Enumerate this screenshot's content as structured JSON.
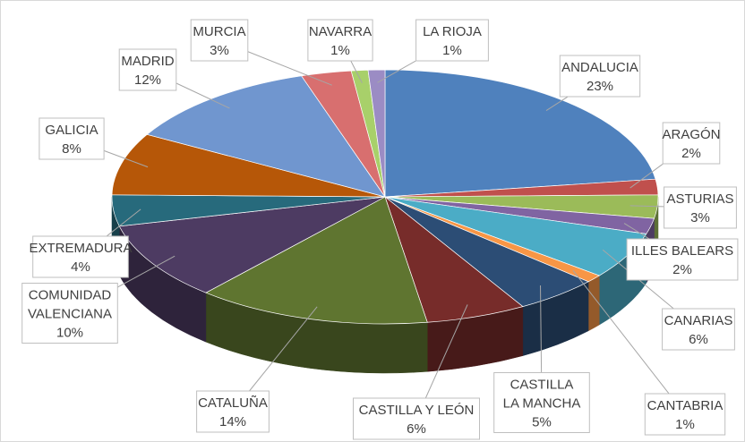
{
  "chart_data": {
    "type": "pie3d",
    "categories": [
      "ANDALUCIA",
      "ARAGÓN",
      "ASTURIAS",
      "ILLES BALEARS",
      "CANARIAS",
      "CANTABRIA",
      "CASTILLA LA MANCHA",
      "CASTILLA Y LEÓN",
      "CATALUÑA",
      "COMUNIDAD VALENCIANA",
      "EXTREMADURA",
      "GALICIA",
      "MADRID",
      "MURCIA",
      "NAVARRA",
      "LA RIOJA"
    ],
    "values": [
      23,
      2,
      3,
      2,
      6,
      1,
      5,
      6,
      14,
      10,
      4,
      8,
      12,
      3,
      1,
      1
    ],
    "value_labels": [
      "23%",
      "2%",
      "3%",
      "2%",
      "6%",
      "1%",
      "5%",
      "6%",
      "14%",
      "10%",
      "4%",
      "8%",
      "12%",
      "3%",
      "1%",
      "1%"
    ],
    "colors": [
      "#4f81bd",
      "#c0504d",
      "#9bbb59",
      "#8064a2",
      "#4bacc6",
      "#f79646",
      "#2c4d75",
      "#772c2a",
      "#5f7530",
      "#4d3b62",
      "#276a7c",
      "#b65708",
      "#7096cf",
      "#d86f6f",
      "#a8d06a",
      "#9b8cc4"
    ]
  }
}
